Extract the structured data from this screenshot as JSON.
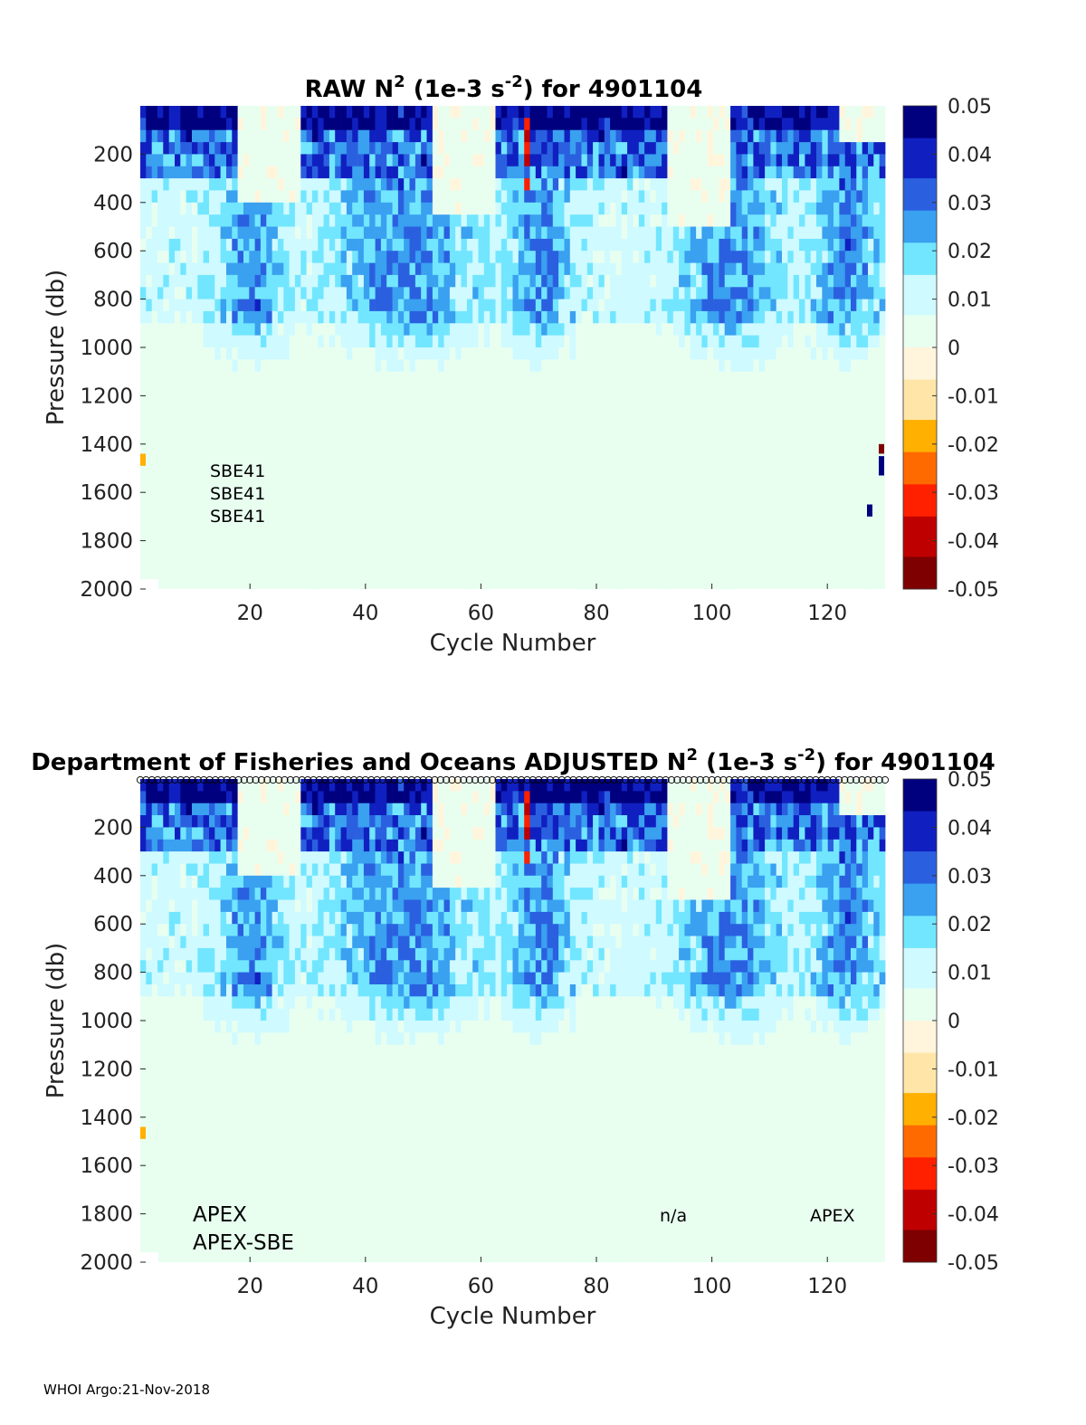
{
  "footer": "WHOI Argo:21-Nov-2018",
  "colors": {
    "colormap": [
      "#7f0000",
      "#bf0000",
      "#ff2000",
      "#ff6a00",
      "#ffb000",
      "#ffe6a8",
      "#fff5dc",
      "#e8fff0",
      "#cffaff",
      "#72e6ff",
      "#3aa0f0",
      "#2a60e0",
      "#1020c0",
      "#00007f"
    ]
  },
  "chart_data": [
    {
      "type": "heatmap",
      "title_prefix": "RAW N",
      "title_sup1": "2",
      "title_mid": " (1e-3 s",
      "title_sup2": "-2",
      "title_suffix": ") for 4901104",
      "xlabel": "Cycle Number",
      "ylabel": "Pressure (db)",
      "xlim": [
        1,
        130
      ],
      "ylim": [
        2000,
        0
      ],
      "xticks": [
        "20",
        "40",
        "60",
        "80",
        "100",
        "120"
      ],
      "yticks": [
        "200",
        "400",
        "600",
        "800",
        "1000",
        "1200",
        "1400",
        "1600",
        "1800",
        "2000"
      ],
      "colorbar": {
        "range": [
          -0.05,
          0.05
        ],
        "ticks": [
          "0.05",
          "0.04",
          "0.03",
          "0.02",
          "0.01",
          "0",
          "-0.01",
          "-0.02",
          "-0.03",
          "-0.04",
          "-0.05"
        ]
      },
      "annotations": [
        "SBE41",
        "SBE41",
        "SBE41"
      ],
      "grid_size": {
        "cycles": 130,
        "levels": 40
      }
    },
    {
      "type": "heatmap",
      "title_prefix": "Department of Fisheries and Oceans  ADJUSTED N",
      "title_sup1": "2",
      "title_mid": " (1e-3 s",
      "title_sup2": "-2",
      "title_suffix": ") for 4901104",
      "xlabel": "Cycle Number",
      "ylabel": "Pressure (db)",
      "xlim": [
        1,
        130
      ],
      "ylim": [
        2000,
        0
      ],
      "xticks": [
        "20",
        "40",
        "60",
        "80",
        "100",
        "120"
      ],
      "yticks": [
        "200",
        "400",
        "600",
        "800",
        "1000",
        "1200",
        "1400",
        "1600",
        "1800",
        "2000"
      ],
      "colorbar": {
        "range": [
          -0.05,
          0.05
        ],
        "ticks": [
          "0.05",
          "0.04",
          "0.03",
          "0.02",
          "0.01",
          "0",
          "-0.01",
          "-0.02",
          "-0.03",
          "-0.04",
          "-0.05"
        ]
      },
      "annotations": [
        "APEX",
        "APEX-SBE",
        "n/a",
        "APEX"
      ],
      "grid_size": {
        "cycles": 130,
        "levels": 40
      }
    }
  ]
}
